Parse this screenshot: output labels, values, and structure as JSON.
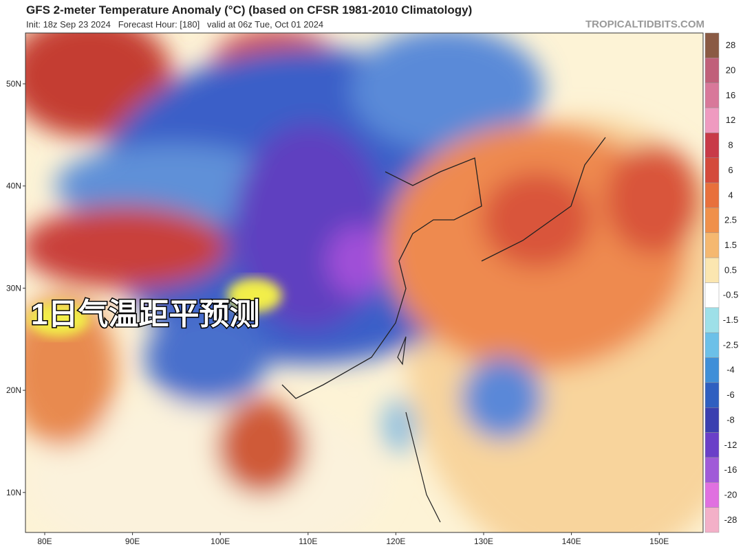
{
  "header": {
    "title": "GFS 2-meter Temperature Anomaly (°C) (based on CFSR 1981-2010 Climatology)",
    "subtitle": "Init: 18z Sep 23 2024   Forecast Hour: [180]   valid at 06z Tue, Oct 01 2024",
    "source": "TROPICALTIDBITS.COM"
  },
  "overlay_text": "1日气温距平预测",
  "map": {
    "lat_labels": [
      "50N",
      "40N",
      "30N",
      "20N",
      "10N"
    ],
    "lon_labels": [
      "80E",
      "90E",
      "100E",
      "110E",
      "120E",
      "130E",
      "140E",
      "150E"
    ]
  },
  "colorbar": {
    "ticks": [
      28,
      20,
      16,
      12,
      8,
      6,
      4,
      2.5,
      1.5,
      0.5,
      -0.5,
      -1.5,
      -2.5,
      -4,
      -6,
      -8,
      -12,
      -16,
      -20,
      -28
    ],
    "colors": [
      "#8a5a44",
      "#c0607a",
      "#d8789a",
      "#ef9ac0",
      "#c83a48",
      "#d44a3c",
      "#e8703c",
      "#f0904a",
      "#f5b870",
      "#fbe6b0",
      "#ffffff",
      "#9ee0e8",
      "#6cc0e8",
      "#3f8fd8",
      "#2f5fc0",
      "#3a3fb0",
      "#6a3fc8",
      "#a05ad8",
      "#e070e0",
      "#f3b0c8"
    ]
  }
}
